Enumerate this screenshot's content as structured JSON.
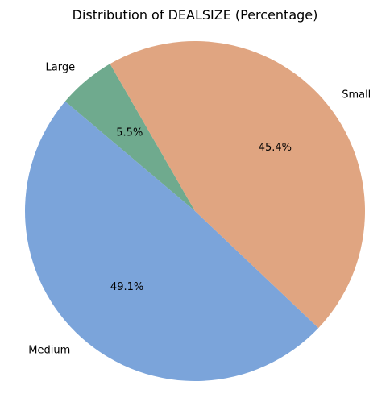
{
  "chart_data": {
    "type": "pie",
    "title": "Distribution of DEALSIZE (Percentage)",
    "start_angle_deg": 120,
    "direction": "counterclockwise",
    "slices": [
      {
        "label": "Large",
        "value": 5.5,
        "pct_label": "5.5%",
        "color": "#6faa8e"
      },
      {
        "label": "Medium",
        "value": 49.1,
        "pct_label": "49.1%",
        "color": "#7ba4da"
      },
      {
        "label": "Small",
        "value": 45.4,
        "pct_label": "45.4%",
        "color": "#e0a581"
      }
    ]
  }
}
